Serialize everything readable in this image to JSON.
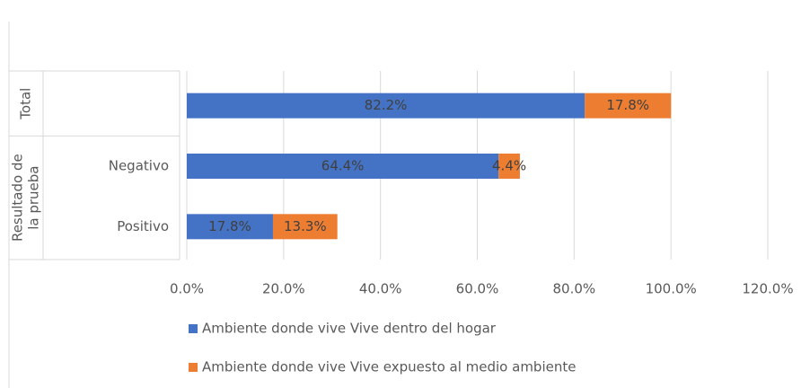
{
  "chart_data": {
    "type": "stacked_barh",
    "categories": [
      null,
      "Negativo",
      "Positivo"
    ],
    "category_groups": [
      {
        "name": [
          "Total"
        ],
        "span": 1
      },
      {
        "name": [
          "Resultado de",
          "la prueba"
        ],
        "span": 2
      }
    ],
    "series": [
      {
        "name": "Ambiente donde vive Vive dentro del hogar",
        "color": "#4472c4",
        "values": [
          82.2,
          64.4,
          17.8
        ],
        "value_labels": [
          "82.2%",
          "64.4%",
          "17.8%"
        ]
      },
      {
        "name": "Ambiente donde vive Vive expuesto al medio ambiente",
        "color": "#ed7d31",
        "values": [
          17.8,
          4.4,
          13.3
        ],
        "value_labels": [
          "17.8%",
          "4.4%",
          "13.3%"
        ]
      }
    ],
    "xlim": [
      0,
      120
    ],
    "xticks": [
      {
        "value": 0,
        "label": "0.0%"
      },
      {
        "value": 20,
        "label": "20.0%"
      },
      {
        "value": 40,
        "label": "40.0%"
      },
      {
        "value": 60,
        "label": "60.0%"
      },
      {
        "value": 80,
        "label": "80.0%"
      },
      {
        "value": 100,
        "label": "100.0%"
      },
      {
        "value": 120,
        "label": "120.0%"
      }
    ],
    "grid": true,
    "legend": "bottom"
  }
}
